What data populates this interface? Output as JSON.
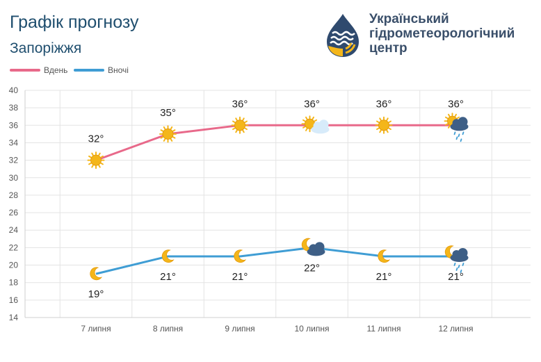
{
  "header": {
    "title": "Графік прогнозу",
    "city": "Запоріжжя",
    "org_lines": [
      "Український",
      "гідрометеорологічний",
      "центр"
    ]
  },
  "legend": {
    "day": "Вдень",
    "night": "Вночі"
  },
  "colors": {
    "day_line": "#e8698a",
    "night_line": "#3f9dd4",
    "sun": "#f4b61a",
    "text_blue": "#1f4e6e",
    "grid": "#e3e3e3"
  },
  "chart_data": {
    "type": "line",
    "categories": [
      "7 липня",
      "8 липня",
      "9 липня",
      "10 липня",
      "11 липня",
      "12 липня"
    ],
    "series": [
      {
        "name": "Вдень",
        "values": [
          32,
          35,
          36,
          36,
          36,
          36
        ],
        "labels": [
          "32°",
          "35°",
          "36°",
          "36°",
          "36°",
          "36°"
        ],
        "icons": [
          "sun-icon",
          "sun-icon",
          "sun-icon",
          "sun-cloud-icon",
          "sun-icon",
          "sun-rain-cloud-icon"
        ]
      },
      {
        "name": "Вночі",
        "values": [
          19,
          21,
          21,
          22,
          21,
          21
        ],
        "labels": [
          "19°",
          "21°",
          "21°",
          "22°",
          "21°",
          "21°"
        ],
        "icons": [
          "moon-icon",
          "moon-icon",
          "moon-icon",
          "moon-cloud-icon",
          "moon-icon",
          "moon-rain-cloud-icon"
        ]
      }
    ],
    "yticks": [
      14,
      16,
      18,
      20,
      22,
      24,
      26,
      28,
      30,
      32,
      34,
      36,
      38,
      40
    ],
    "ylim": [
      14,
      40
    ],
    "grid": true,
    "legend_position": "top-left"
  }
}
